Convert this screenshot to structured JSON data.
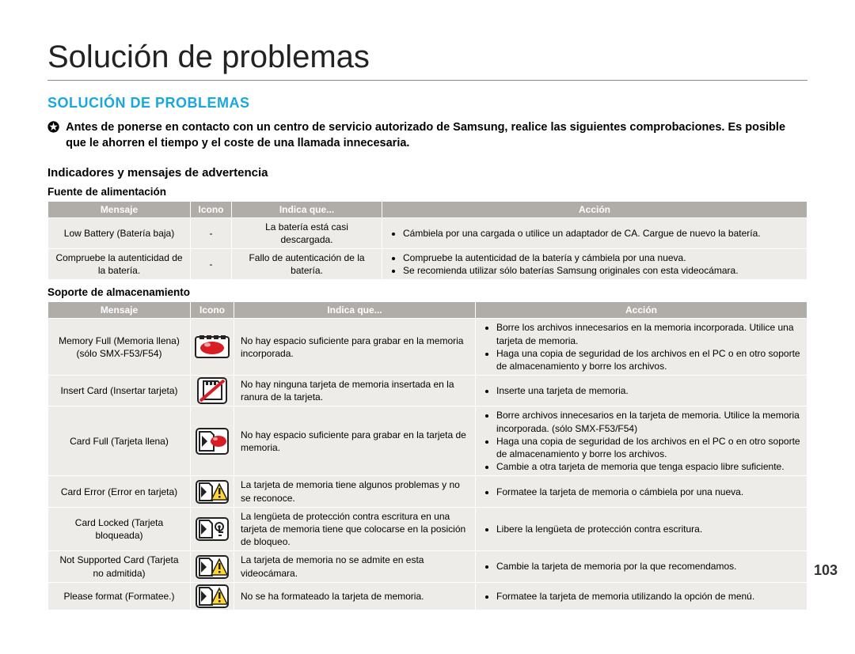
{
  "page": {
    "title": "Solución de problemas",
    "sectionHeading": "SOLUCIÓN DE PROBLEMAS",
    "intro": "Antes de ponerse en contacto con un centro de servicio autorizado de Samsung, realice las siguientes comprobaciones. Es posible que le ahorren el tiempo y el coste de una llamada innecesaria.",
    "sub1": "Indicadores y mensajes de advertencia",
    "pageNumber": "103"
  },
  "table1": {
    "caption": "Fuente de alimentación",
    "headers": {
      "c1": "Mensaje",
      "c2": "Icono",
      "c3": "Indica que...",
      "c4": "Acción"
    },
    "rows": [
      {
        "msg": "Low Battery (Batería baja)",
        "icon": "-",
        "ind": "La batería está casi descargada.",
        "act": [
          "Cámbiela por una cargada o utilice un adaptador de CA. Cargue de nuevo la batería."
        ]
      },
      {
        "msg": "Compruebe la autenticidad de la batería.",
        "icon": "-",
        "ind": "Fallo de autenticación de la batería.",
        "act": [
          "Compruebe la autenticidad de la batería y cámbiela por una nueva.",
          "Se recomienda utilizar sólo baterías Samsung originales con esta videocámara."
        ]
      }
    ]
  },
  "table2": {
    "caption": "Soporte de almacenamiento",
    "headers": {
      "c1": "Mensaje",
      "c2": "Icono",
      "c3": "Indica que...",
      "c4": "Acción"
    },
    "rows": [
      {
        "msg": "Memory Full (Memoria llena) (sólo SMX-F53/F54)",
        "iconType": "memory-full",
        "ind": "No hay espacio suficiente para grabar en la memoria incorporada.",
        "act": [
          "Borre los archivos innecesarios en la memoria incorporada. Utilice una tarjeta de memoria.",
          "Haga una copia de seguridad de los archivos en el PC o en otro soporte de almacenamiento y borre los archivos."
        ]
      },
      {
        "msg": "Insert Card (Insertar tarjeta)",
        "iconType": "insert-card",
        "ind": "No hay ninguna tarjeta de memoria insertada en la ranura de la tarjeta.",
        "act": [
          "Inserte una tarjeta de memoria."
        ]
      },
      {
        "msg": "Card Full (Tarjeta llena)",
        "iconType": "card-full",
        "ind": "No hay espacio suficiente para grabar en la tarjeta de memoria.",
        "act": [
          "Borre archivos innecesarios en la tarjeta de memoria. Utilice la memoria incorporada. (sólo SMX-F53/F54)",
          "Haga una copia de seguridad de los archivos en el PC o en otro soporte de almacenamiento y borre los archivos.",
          "Cambie a otra tarjeta de memoria que tenga espacio libre suficiente."
        ]
      },
      {
        "msg": "Card Error (Error en tarjeta)",
        "iconType": "card-warn",
        "ind": "La tarjeta de memoria tiene algunos problemas y no se reconoce.",
        "act": [
          "Formatee la tarjeta de memoria o cámbiela por una nueva."
        ]
      },
      {
        "msg": "Card Locked (Tarjeta bloqueada)",
        "iconType": "card-lock",
        "ind": "La lengüeta de protección contra escritura en una tarjeta de memoria tiene que colocarse en la posición de bloqueo.",
        "act": [
          "Libere la lengüeta de protección contra escritura."
        ]
      },
      {
        "msg": "Not Supported Card (Tarjeta no admitida)",
        "iconType": "card-warn",
        "ind": "La tarjeta de memoria no se admite en esta videocámara.",
        "act": [
          "Cambie la tarjeta de memoria por la que recomendamos."
        ]
      },
      {
        "msg": "Please format (Formatee.)",
        "iconType": "card-warn",
        "ind": "No se ha formateado la tarjeta de memoria.",
        "act": [
          "Formatee la tarjeta de memoria utilizando la opción de menú."
        ]
      }
    ]
  },
  "colors": {
    "headerBg": "#b0ada9",
    "cellBg": "#eeece9",
    "accent": "#1aa7e0",
    "warnYellow": "#ffd633",
    "fullRed": "#d81e24"
  }
}
